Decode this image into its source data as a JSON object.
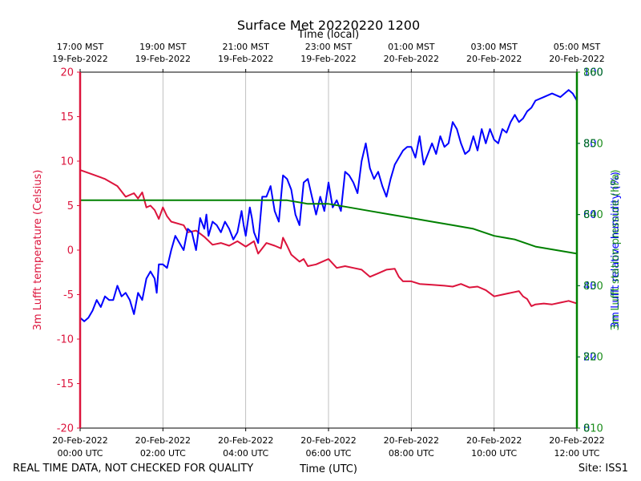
{
  "chart_data": {
    "type": "line",
    "title": "Surface Met 20220220 1200",
    "xlabel": "Time (UTC)",
    "top_xlabel": "Time (local)",
    "footer_left": "REAL TIME DATA, NOT CHECKED FOR QUALITY",
    "footer_right": "Site: ISS1",
    "xlim_hours": [
      0,
      12
    ],
    "grid": "vertical",
    "x_ticks": [
      {
        "hour": 0,
        "line1": "20-Feb-2022",
        "line2": "00:00 UTC"
      },
      {
        "hour": 2,
        "line1": "20-Feb-2022",
        "line2": "02:00 UTC"
      },
      {
        "hour": 4,
        "line1": "20-Feb-2022",
        "line2": "04:00 UTC"
      },
      {
        "hour": 6,
        "line1": "20-Feb-2022",
        "line2": "06:00 UTC"
      },
      {
        "hour": 8,
        "line1": "20-Feb-2022",
        "line2": "08:00 UTC"
      },
      {
        "hour": 10,
        "line1": "20-Feb-2022",
        "line2": "10:00 UTC"
      },
      {
        "hour": 12,
        "line1": "20-Feb-2022",
        "line2": "12:00 UTC"
      }
    ],
    "top_x_ticks": [
      {
        "hour": 0,
        "line1": "17:00 MST",
        "line2": "19-Feb-2022"
      },
      {
        "hour": 2,
        "line1": "19:00 MST",
        "line2": "19-Feb-2022"
      },
      {
        "hour": 4,
        "line1": "21:00 MST",
        "line2": "19-Feb-2022"
      },
      {
        "hour": 6,
        "line1": "23:00 MST",
        "line2": "19-Feb-2022"
      },
      {
        "hour": 8,
        "line1": "01:00 MST",
        "line2": "20-Feb-2022"
      },
      {
        "hour": 10,
        "line1": "03:00 MST",
        "line2": "20-Feb-2022"
      },
      {
        "hour": 12,
        "line1": "05:00 MST",
        "line2": "20-Feb-2022"
      }
    ],
    "left_axis": {
      "label": "3m Lufft temperature (Celsius)",
      "color": "#dc143c",
      "ylim": [
        -20,
        20
      ],
      "ticks": [
        "-20",
        "-15",
        "-10",
        "-5",
        "0",
        "5",
        "10",
        "15",
        "20"
      ]
    },
    "right_axes": [
      {
        "label": "3m Lufft relative humidity (%)",
        "color": "#0000ff",
        "ylim": [
          0,
          100
        ],
        "ticks": [
          "0",
          "20",
          "40",
          "60",
          "80",
          "100"
        ]
      },
      {
        "label": "3m Lufft station pressure (hPa)",
        "color": "#008000",
        "ylim": [
          810,
          860
        ],
        "ticks": [
          "810",
          "820",
          "830",
          "840",
          "850",
          "860"
        ]
      }
    ],
    "series": [
      {
        "name": "3m Lufft temperature",
        "axis": "left",
        "color": "#dc143c",
        "x": [
          0,
          0.3,
          0.6,
          0.9,
          1.1,
          1.3,
          1.4,
          1.5,
          1.6,
          1.7,
          1.8,
          1.9,
          2.0,
          2.1,
          2.2,
          2.5,
          2.6,
          2.8,
          3.0,
          3.2,
          3.4,
          3.6,
          3.8,
          4.0,
          4.2,
          4.3,
          4.5,
          4.7,
          4.85,
          4.9,
          5.0,
          5.1,
          5.3,
          5.4,
          5.5,
          5.7,
          5.9,
          6.0,
          6.2,
          6.4,
          6.6,
          6.8,
          7.0,
          7.2,
          7.4,
          7.6,
          7.7,
          7.8,
          8.0,
          8.2,
          8.5,
          8.8,
          9.0,
          9.2,
          9.4,
          9.6,
          9.8,
          10.0,
          10.2,
          10.4,
          10.6,
          10.7,
          10.8,
          10.9,
          11.0,
          11.2,
          11.4,
          11.6,
          11.8,
          12.0
        ],
        "y": [
          9.0,
          8.5,
          8.0,
          7.2,
          6.0,
          6.4,
          5.8,
          6.5,
          4.8,
          5.0,
          4.5,
          3.5,
          4.8,
          3.8,
          3.2,
          2.8,
          2.0,
          2.2,
          1.5,
          0.6,
          0.8,
          0.5,
          1.0,
          0.4,
          1.0,
          -0.4,
          0.8,
          0.5,
          0.2,
          1.4,
          0.5,
          -0.5,
          -1.3,
          -1.0,
          -1.8,
          -1.6,
          -1.2,
          -1.0,
          -2.0,
          -1.8,
          -2.0,
          -2.2,
          -3.0,
          -2.6,
          -2.2,
          -2.1,
          -3.0,
          -3.5,
          -3.5,
          -3.8,
          -3.9,
          -4.0,
          -4.1,
          -3.8,
          -4.2,
          -4.1,
          -4.5,
          -5.2,
          -5.0,
          -4.8,
          -4.6,
          -5.2,
          -5.5,
          -6.3,
          -6.1,
          -6.0,
          -6.1,
          -5.9,
          -5.7,
          -6.0
        ]
      },
      {
        "name": "3m Lufft relative humidity",
        "axis": "right1",
        "color": "#0000ff",
        "x": [
          0,
          0.1,
          0.2,
          0.3,
          0.4,
          0.5,
          0.6,
          0.7,
          0.8,
          0.9,
          1.0,
          1.1,
          1.2,
          1.3,
          1.4,
          1.5,
          1.6,
          1.7,
          1.8,
          1.85,
          1.9,
          2.0,
          2.1,
          2.2,
          2.3,
          2.4,
          2.5,
          2.6,
          2.7,
          2.8,
          2.9,
          3.0,
          3.05,
          3.1,
          3.2,
          3.3,
          3.4,
          3.5,
          3.6,
          3.7,
          3.8,
          3.9,
          3.95,
          4.0,
          4.1,
          4.15,
          4.2,
          4.3,
          4.4,
          4.5,
          4.6,
          4.7,
          4.8,
          4.9,
          5.0,
          5.1,
          5.2,
          5.3,
          5.4,
          5.5,
          5.6,
          5.7,
          5.8,
          5.9,
          6.0,
          6.1,
          6.2,
          6.3,
          6.4,
          6.5,
          6.6,
          6.7,
          6.8,
          6.9,
          7.0,
          7.1,
          7.2,
          7.3,
          7.4,
          7.5,
          7.6,
          7.7,
          7.8,
          7.9,
          8.0,
          8.1,
          8.2,
          8.3,
          8.4,
          8.5,
          8.6,
          8.7,
          8.8,
          8.9,
          9.0,
          9.1,
          9.2,
          9.3,
          9.4,
          9.5,
          9.6,
          9.7,
          9.8,
          9.9,
          10.0,
          10.1,
          10.2,
          10.3,
          10.4,
          10.5,
          10.6,
          10.7,
          10.8,
          10.9,
          11.0,
          11.2,
          11.4,
          11.6,
          11.8,
          11.9,
          12.0
        ],
        "y": [
          31,
          30,
          31,
          33,
          36,
          34,
          37,
          36,
          36,
          40,
          37,
          38,
          36,
          32,
          38,
          36,
          42,
          44,
          42,
          38,
          46,
          46,
          45,
          50,
          54,
          52,
          50,
          56,
          55,
          50,
          59,
          56,
          60,
          54,
          58,
          57,
          55,
          58,
          56,
          53,
          55,
          61,
          57,
          54,
          62,
          59,
          55,
          52,
          65,
          65,
          68,
          61,
          58,
          71,
          70,
          67,
          60,
          57,
          69,
          70,
          65,
          60,
          65,
          61,
          69,
          62,
          64,
          61,
          72,
          71,
          69,
          66,
          75,
          80,
          73,
          70,
          72,
          68,
          65,
          70,
          74,
          76,
          78,
          79,
          79,
          76,
          82,
          74,
          77,
          80,
          77,
          82,
          79,
          80,
          86,
          84,
          80,
          77,
          78,
          82,
          78,
          84,
          80,
          84,
          81,
          80,
          84,
          83,
          86,
          88,
          86,
          87,
          89,
          90,
          92,
          93,
          94,
          93,
          95,
          94,
          92
        ],
        "y_note": "values in % (right axis 0-100)"
      },
      {
        "name": "3m Lufft station pressure",
        "axis": "right2",
        "color": "#008000",
        "x": [
          0,
          0.5,
          1.0,
          1.5,
          2.0,
          2.5,
          3.0,
          3.5,
          4.0,
          4.5,
          5.0,
          5.5,
          6.0,
          6.5,
          7.0,
          7.5,
          8.0,
          8.5,
          9.0,
          9.5,
          10.0,
          10.5,
          11.0,
          11.5,
          12.0
        ],
        "y": [
          842,
          842,
          842,
          842,
          842,
          842,
          842,
          842,
          842,
          842,
          842,
          841.5,
          841.5,
          841,
          840.5,
          840,
          839.5,
          839,
          838.5,
          838,
          837,
          836.5,
          835.5,
          835,
          834.5
        ]
      }
    ]
  }
}
